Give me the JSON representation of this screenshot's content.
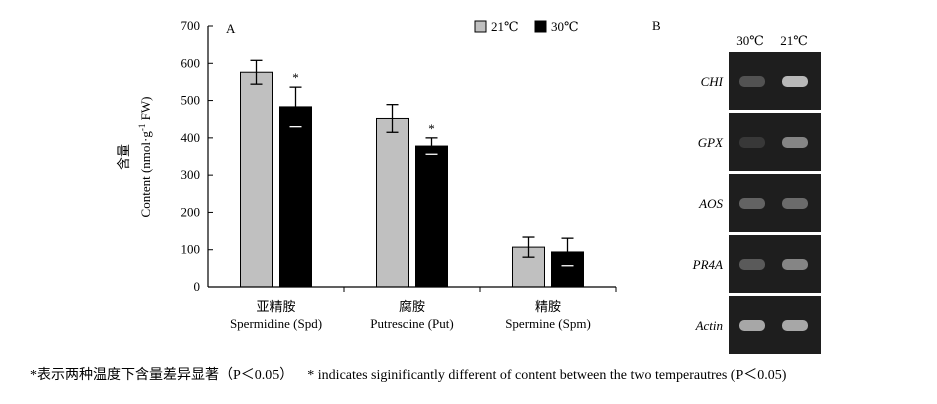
{
  "panel_a_label": "A",
  "panel_b_label": "B",
  "chart_data": {
    "type": "bar",
    "title": "",
    "ylabel_cn": "含量",
    "ylabel": "Content (nmol·g-1 FW)",
    "ylabel_parts": {
      "prefix": "Content (nmol·g",
      "sup": "-1",
      "suffix": " FW)"
    },
    "ylim": [
      0,
      700
    ],
    "yticks": [
      0,
      100,
      200,
      300,
      400,
      500,
      600,
      700
    ],
    "categories": [
      {
        "cn": "亚精胺",
        "en": "Spermidine (Spd)"
      },
      {
        "cn": "腐胺",
        "en": "Putrescine (Put)"
      },
      {
        "cn": "精胺",
        "en": "Spermine (Spm)"
      }
    ],
    "series": [
      {
        "name": "21℃",
        "color": "#c0c0c0",
        "values": [
          576,
          452,
          107
        ],
        "errors": [
          32,
          37,
          27
        ]
      },
      {
        "name": "30℃",
        "color": "#000000",
        "values": [
          483,
          378,
          94
        ],
        "errors": [
          53,
          22,
          37
        ]
      }
    ],
    "significance": [
      "*",
      "*",
      ""
    ],
    "legend_position": "top-right",
    "grid": false
  },
  "gel": {
    "columns": [
      "30℃",
      "21℃"
    ],
    "rows": [
      {
        "gene": "CHI",
        "band_30": 0.25,
        "band_21": 0.85
      },
      {
        "gene": "GPX",
        "band_30": 0.1,
        "band_21": 0.55
      },
      {
        "gene": "AOS",
        "band_30": 0.35,
        "band_21": 0.4
      },
      {
        "gene": "PR4A",
        "band_30": 0.3,
        "band_21": 0.55
      },
      {
        "gene": "Actin",
        "band_30": 0.75,
        "band_21": 0.75
      }
    ]
  },
  "caption": {
    "cn": "*表示两种温度下含量差异显著（P＜0.05）",
    "en": "* indicates siginificantly different of content between the two temperautres (P＜0.05)"
  }
}
